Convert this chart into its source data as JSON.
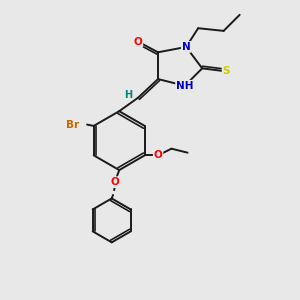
{
  "background_color": "#e8e8e8",
  "bond_color": "#1a1a1a",
  "bond_width": 1.4,
  "atom_colors": {
    "O": "#ff0000",
    "N": "#0000cc",
    "S": "#cccc00",
    "Br": "#cc6600",
    "H": "#008080",
    "C": "#1a1a1a"
  },
  "font_size": 7.5
}
